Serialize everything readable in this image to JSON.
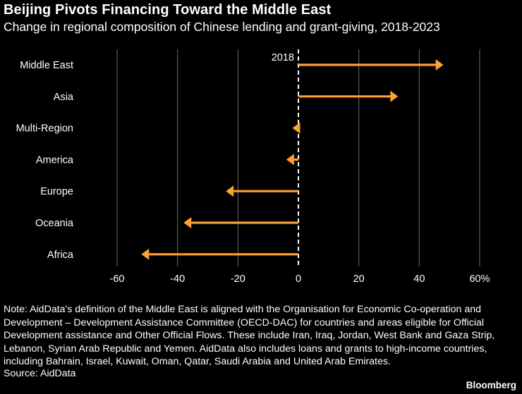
{
  "title": "Beijing Pivots Financing Toward the Middle East",
  "subtitle": "Change in regional composition of Chinese lending and grant-giving, 2018-2023",
  "note": "Note: AidData's definition of the Middle East is aligned with the Organisation for Economic Co-operation and Development – Development Assistance Committee (OECD-DAC) for countries and areas eligible for Official Development assistance and Other Official Flows. These include Iran, Iraq, Jordan, West Bank and Gaza Strip, Lebanon, Syrian Arab Republic and Yemen. AidData also includes loans and grants to high-income countries, including Bahrain, Israel, Kuwait, Oman, Qatar, Saudi Arabia and United Arab Emirates.",
  "source": "Source: AidData",
  "brand": "Bloomberg",
  "colors": {
    "arrow": "#ffa032",
    "grid": "#6b6b6b",
    "baseline": "#ffffff",
    "background": "#000000",
    "text": "#ffffff"
  },
  "chart_data": {
    "type": "arrow",
    "categories": [
      "Middle East",
      "Asia",
      "Multi-Region",
      "America",
      "Europe",
      "Oceania",
      "Africa"
    ],
    "values": [
      48,
      33,
      -2,
      -4,
      -24,
      -38,
      -52
    ],
    "baseline": 0,
    "baseline_label": "2018",
    "xlim": [
      -60,
      60
    ],
    "ticks": [
      -60,
      -40,
      -20,
      0,
      20,
      40,
      60
    ],
    "tick_labels": [
      "-60",
      "-40",
      "-20",
      "0",
      "20",
      "40",
      "60%"
    ],
    "grid": true
  }
}
